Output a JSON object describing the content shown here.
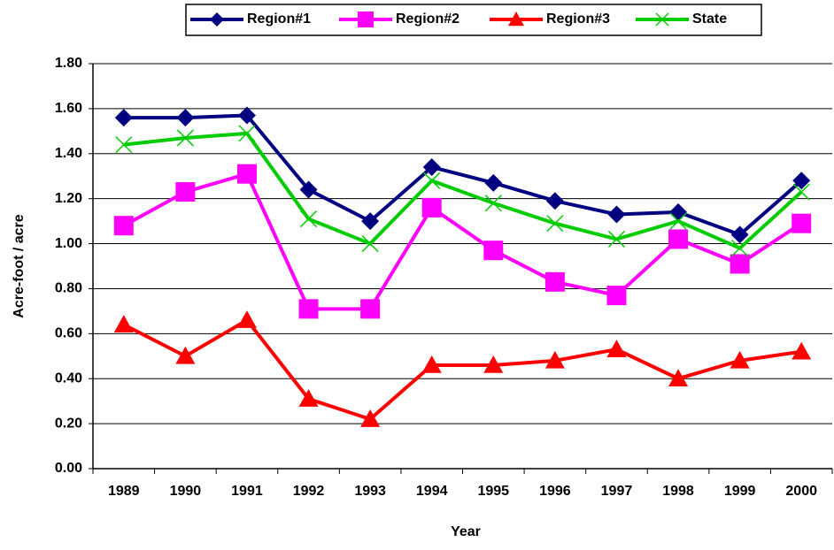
{
  "chart_data": {
    "type": "line",
    "categories": [
      "1989",
      "1990",
      "1991",
      "1992",
      "1993",
      "1994",
      "1995",
      "1996",
      "1997",
      "1998",
      "1999",
      "2000"
    ],
    "series": [
      {
        "name": "Region#1",
        "color": "#000080",
        "marker": "diamond",
        "values": [
          1.56,
          1.56,
          1.57,
          1.24,
          1.1,
          1.34,
          1.27,
          1.19,
          1.13,
          1.14,
          1.04,
          1.28
        ]
      },
      {
        "name": "Region#2",
        "color": "#ff00ff",
        "marker": "square",
        "values": [
          1.08,
          1.23,
          1.31,
          0.71,
          0.71,
          1.16,
          0.97,
          0.83,
          0.77,
          1.02,
          0.91,
          1.09
        ]
      },
      {
        "name": "Region#3",
        "color": "#ff0000",
        "marker": "triangle",
        "values": [
          0.64,
          0.5,
          0.66,
          0.31,
          0.22,
          0.46,
          0.46,
          0.48,
          0.53,
          0.4,
          0.48,
          0.52
        ]
      },
      {
        "name": "State",
        "color": "#00cc00",
        "marker": "x",
        "values": [
          1.44,
          1.47,
          1.49,
          1.11,
          1.0,
          1.28,
          1.18,
          1.09,
          1.02,
          1.1,
          0.98,
          1.23
        ]
      }
    ],
    "xlabel": "Year",
    "ylabel": "Acre-foot / acre",
    "ylim": [
      0,
      1.8
    ],
    "yticks": [
      {
        "value": 0,
        "label": "0.00"
      },
      {
        "value": 0.2,
        "label": "0.20"
      },
      {
        "value": 0.4,
        "label": "0.40"
      },
      {
        "value": 0.6,
        "label": "0.60"
      },
      {
        "value": 0.8,
        "label": "0.80"
      },
      {
        "value": 1,
        "label": "1.00"
      },
      {
        "value": 1.2,
        "label": "1.20"
      },
      {
        "value": 1.4,
        "label": "1.40"
      },
      {
        "value": 1.6,
        "label": "1.60"
      },
      {
        "value": 1.8,
        "label": "1.80"
      }
    ],
    "grid": true,
    "legend": "top"
  }
}
